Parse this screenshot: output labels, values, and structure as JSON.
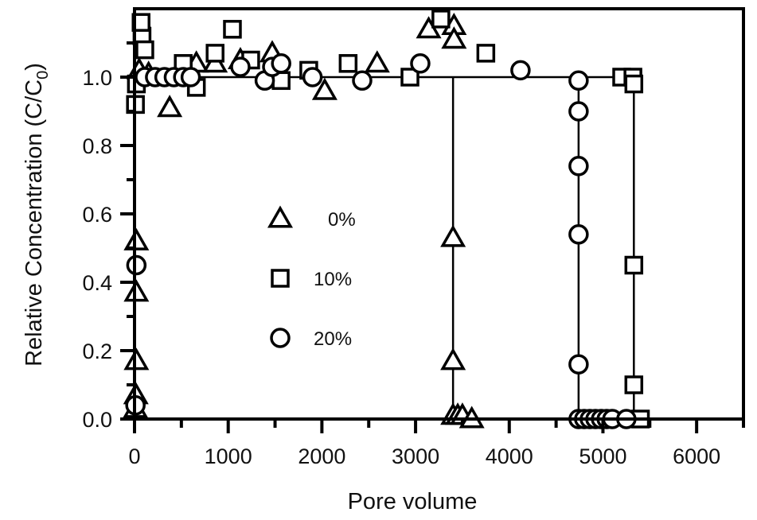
{
  "chart_data": {
    "type": "scatter",
    "xlabel": "Pore volume",
    "ylabel": "Relative Concentration (C/C",
    "ylabel_sub": "0",
    "ylabel_end": ")",
    "xlim": [
      0,
      6500
    ],
    "ylim": [
      0,
      1.2
    ],
    "x_ticks": [
      0,
      1000,
      2000,
      3000,
      4000,
      5000,
      6000
    ],
    "x_tick_labels": [
      "0",
      "1000",
      "2000",
      "3000",
      "4000",
      "5000",
      "6000"
    ],
    "y_ticks": [
      0,
      0.2,
      0.4,
      0.6,
      0.8,
      1.0
    ],
    "y_tick_labels": [
      "0.0",
      "0.2",
      "0.4",
      "0.6",
      "0.8",
      "1.0"
    ],
    "grid": false,
    "legend_placement": "center-left",
    "reference_line_y": 1.0,
    "series": [
      {
        "name": "0%",
        "marker": "triangle",
        "breakthrough_x": 3400,
        "points": [
          [
            10,
            0.03
          ],
          [
            15,
            0.07
          ],
          [
            20,
            0.17
          ],
          [
            20,
            0.37
          ],
          [
            20,
            0.52
          ],
          [
            50,
            1.02
          ],
          [
            150,
            1.01
          ],
          [
            375,
            0.91
          ],
          [
            660,
            1.04
          ],
          [
            860,
            1.04
          ],
          [
            1130,
            1.05
          ],
          [
            1470,
            1.07
          ],
          [
            2030,
            0.96
          ],
          [
            2590,
            1.04
          ],
          [
            3140,
            1.14
          ],
          [
            3410,
            1.15
          ],
          [
            3410,
            1.11
          ],
          [
            3400,
            0.53
          ],
          [
            3400,
            0.17
          ],
          [
            3400,
            0.01
          ],
          [
            3450,
            0.01
          ],
          [
            3500,
            0.01
          ],
          [
            3600,
            0.0
          ]
        ]
      },
      {
        "name": "10%",
        "marker": "square",
        "breakthrough_x": 5330,
        "points": [
          [
            10,
            0.92
          ],
          [
            20,
            0.98
          ],
          [
            80,
            1.12
          ],
          [
            70,
            1.16
          ],
          [
            110,
            1.08
          ],
          [
            520,
            1.04
          ],
          [
            660,
            0.97
          ],
          [
            860,
            1.07
          ],
          [
            1045,
            1.14
          ],
          [
            1240,
            1.05
          ],
          [
            1565,
            0.99
          ],
          [
            1860,
            1.02
          ],
          [
            2280,
            1.04
          ],
          [
            2940,
            1.0
          ],
          [
            3270,
            1.17
          ],
          [
            3750,
            1.07
          ],
          [
            5200,
            1.0
          ],
          [
            5320,
            1.0
          ],
          [
            5330,
            0.98
          ],
          [
            5330,
            0.45
          ],
          [
            5330,
            0.1
          ],
          [
            5400,
            0.0
          ]
        ]
      },
      {
        "name": "20%",
        "marker": "circle",
        "breakthrough_x": 4740,
        "points": [
          [
            10,
            0.04
          ],
          [
            20,
            0.45
          ],
          [
            110,
            1.0
          ],
          [
            220,
            1.0
          ],
          [
            320,
            1.0
          ],
          [
            420,
            1.0
          ],
          [
            520,
            1.0
          ],
          [
            600,
            1.0
          ],
          [
            1130,
            1.03
          ],
          [
            1390,
            0.99
          ],
          [
            1470,
            1.03
          ],
          [
            1565,
            1.04
          ],
          [
            1900,
            1.0
          ],
          [
            2430,
            0.99
          ],
          [
            3050,
            1.04
          ],
          [
            4120,
            1.02
          ],
          [
            4740,
            0.99
          ],
          [
            4740,
            0.9
          ],
          [
            4740,
            0.74
          ],
          [
            4740,
            0.54
          ],
          [
            4740,
            0.16
          ],
          [
            4740,
            0.0
          ],
          [
            4800,
            0.0
          ],
          [
            4860,
            0.0
          ],
          [
            4920,
            0.0
          ],
          [
            4980,
            0.0
          ],
          [
            5040,
            0.0
          ],
          [
            5100,
            0.0
          ],
          [
            5250,
            0.0
          ]
        ]
      }
    ]
  }
}
